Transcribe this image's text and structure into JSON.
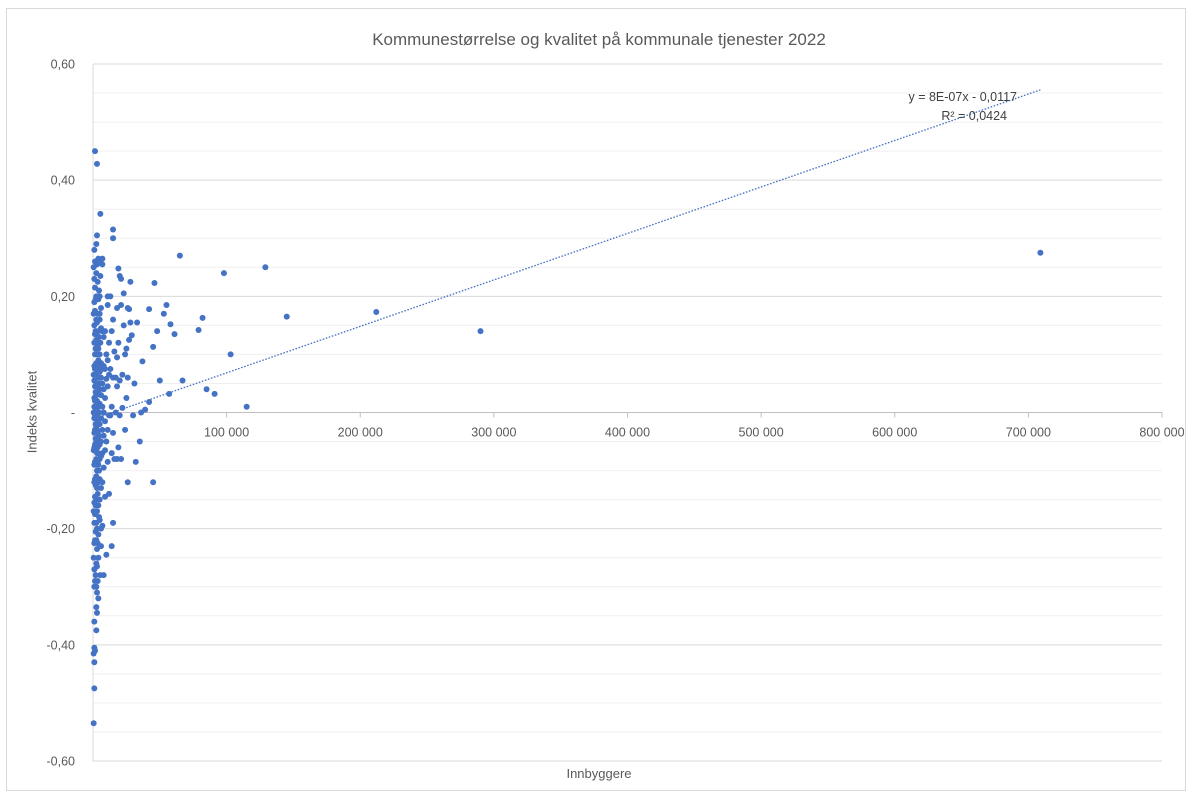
{
  "chart_data": {
    "type": "scatter",
    "title": "Kommunestørrelse og kvalitet på kommunale tjenester 2022",
    "xlabel": "Innbyggere",
    "ylabel": "Indeks kvalitet",
    "xlim": [
      0,
      800000
    ],
    "ylim": [
      -0.6,
      0.6
    ],
    "x_ticks": [
      0,
      100000,
      200000,
      300000,
      400000,
      500000,
      600000,
      700000,
      800000
    ],
    "x_tick_labels": [
      "",
      "100 000",
      "200 000",
      "300 000",
      "400 000",
      "500 000",
      "600 000",
      "700 000",
      "800 000"
    ],
    "y_ticks": [
      0.6,
      0.4,
      0.2,
      0,
      -0.2,
      -0.4,
      -0.6
    ],
    "y_tick_labels": [
      "0,60",
      "0,40",
      "0,20",
      "-",
      "-0,20",
      "-0,40",
      "-0,60"
    ],
    "grid": true,
    "legend": "none",
    "colors": {
      "points": "#4472c4",
      "trendline": "#4472c4",
      "grid": "#d9d9d9",
      "text": "#595959"
    },
    "trendline": {
      "type": "linear",
      "style": "dotted",
      "slope": 8e-07,
      "intercept": -0.0117,
      "x_range": [
        0,
        709000
      ],
      "equation_label": "y = 8E-07x - 0,0117",
      "r2_label": "R² = 0,0424"
    },
    "series": [
      {
        "points": [
          [
            709000,
            0.275
          ],
          [
            290000,
            0.14
          ],
          [
            212000,
            0.173
          ],
          [
            145000,
            0.165
          ],
          [
            129000,
            0.25
          ],
          [
            115000,
            0.01
          ],
          [
            103000,
            0.1
          ],
          [
            98000,
            0.24
          ],
          [
            91000,
            0.032
          ],
          [
            85000,
            0.04
          ],
          [
            82000,
            0.163
          ],
          [
            79000,
            0.142
          ],
          [
            67000,
            0.055
          ],
          [
            65000,
            0.27
          ],
          [
            61000,
            0.135
          ],
          [
            58000,
            0.152
          ],
          [
            57000,
            0.032
          ],
          [
            55000,
            0.185
          ],
          [
            53000,
            0.17
          ],
          [
            50000,
            0.055
          ],
          [
            48000,
            0.14
          ],
          [
            46000,
            0.223
          ],
          [
            45000,
            -0.12
          ],
          [
            45000,
            0.113
          ],
          [
            42000,
            0.178
          ],
          [
            42000,
            0.018
          ],
          [
            39000,
            0.005
          ],
          [
            37000,
            0.088
          ],
          [
            36000,
            0.0
          ],
          [
            35000,
            -0.05
          ],
          [
            33000,
            0.155
          ],
          [
            32000,
            -0.085
          ],
          [
            31000,
            0.05
          ],
          [
            30000,
            -0.005
          ],
          [
            29000,
            0.133
          ],
          [
            28000,
            0.155
          ],
          [
            28000,
            0.225
          ],
          [
            27000,
            0.178
          ],
          [
            27000,
            0.125
          ],
          [
            26000,
            0.18
          ],
          [
            26000,
            0.06
          ],
          [
            26000,
            -0.12
          ],
          [
            25000,
            0.11
          ],
          [
            25000,
            0.025
          ],
          [
            24000,
            0.1
          ],
          [
            24000,
            -0.03
          ],
          [
            23000,
            0.205
          ],
          [
            23000,
            0.15
          ],
          [
            22000,
            0.065
          ],
          [
            22000,
            0.008
          ],
          [
            21000,
            0.23
          ],
          [
            21000,
            0.185
          ],
          [
            21000,
            -0.08
          ],
          [
            20000,
            0.235
          ],
          [
            20000,
            0.055
          ],
          [
            20000,
            -0.005
          ],
          [
            19000,
            0.248
          ],
          [
            19000,
            0.12
          ],
          [
            19000,
            -0.06
          ],
          [
            18000,
            0.18
          ],
          [
            18000,
            0.095
          ],
          [
            18000,
            0.045
          ],
          [
            18000,
            -0.08
          ],
          [
            17000,
            0.06
          ],
          [
            17000,
            0.0
          ],
          [
            16000,
            0.105
          ],
          [
            16000,
            -0.08
          ],
          [
            15000,
            0.315
          ],
          [
            15000,
            0.3
          ],
          [
            15000,
            0.16
          ],
          [
            15000,
            0.06
          ],
          [
            15000,
            -0.035
          ],
          [
            15000,
            -0.19
          ],
          [
            14000,
            0.14
          ],
          [
            14000,
            0.01
          ],
          [
            14000,
            -0.07
          ],
          [
            14000,
            -0.23
          ],
          [
            13000,
            0.2
          ],
          [
            13000,
            0.075
          ],
          [
            13000,
            -0.005
          ],
          [
            12000,
            0.12
          ],
          [
            12000,
            0.065
          ],
          [
            12000,
            -0.005
          ],
          [
            12000,
            -0.14
          ],
          [
            11000,
            0.2
          ],
          [
            11000,
            0.185
          ],
          [
            11000,
            0.09
          ],
          [
            11000,
            0.045
          ],
          [
            11000,
            -0.03
          ],
          [
            11000,
            -0.085
          ],
          [
            10000,
            0.1
          ],
          [
            10000,
            0.058
          ],
          [
            10000,
            -0.05
          ],
          [
            10000,
            -0.245
          ],
          [
            9000,
            0.14
          ],
          [
            9000,
            0.075
          ],
          [
            9000,
            0.025
          ],
          [
            9000,
            -0.015
          ],
          [
            9000,
            -0.065
          ],
          [
            9000,
            -0.145
          ],
          [
            8000,
            0.13
          ],
          [
            8000,
            0.08
          ],
          [
            8000,
            0.04
          ],
          [
            8000,
            0.0
          ],
          [
            8000,
            -0.04
          ],
          [
            8000,
            -0.095
          ],
          [
            8000,
            -0.28
          ],
          [
            7000,
            0.265
          ],
          [
            7000,
            0.255
          ],
          [
            7000,
            0.14
          ],
          [
            7000,
            0.075
          ],
          [
            7000,
            0.05
          ],
          [
            7000,
            0.01
          ],
          [
            7000,
            -0.03
          ],
          [
            7000,
            -0.07
          ],
          [
            7000,
            -0.12
          ],
          [
            7000,
            -0.195
          ],
          [
            6000,
            0.18
          ],
          [
            6000,
            0.145
          ],
          [
            6000,
            0.085
          ],
          [
            6000,
            0.06
          ],
          [
            6000,
            0.03
          ],
          [
            6000,
            -0.01
          ],
          [
            6000,
            -0.05
          ],
          [
            6000,
            -0.075
          ],
          [
            6000,
            -0.13
          ],
          [
            6000,
            -0.2
          ],
          [
            6000,
            -0.23
          ],
          [
            5500,
            0.342
          ],
          [
            5500,
            0.26
          ],
          [
            5500,
            0.235
          ],
          [
            5500,
            0.12
          ],
          [
            5500,
            -0.28
          ],
          [
            5000,
            0.2
          ],
          [
            5000,
            0.17
          ],
          [
            5000,
            0.16
          ],
          [
            5000,
            0.1
          ],
          [
            5000,
            0.07
          ],
          [
            5000,
            0.04
          ],
          [
            5000,
            0.015
          ],
          [
            5000,
            -0.02
          ],
          [
            5000,
            -0.055
          ],
          [
            5000,
            -0.08
          ],
          [
            5000,
            -0.115
          ],
          [
            5000,
            -0.15
          ],
          [
            5000,
            -0.185
          ],
          [
            4500,
            0.21
          ],
          [
            4500,
            0.13
          ],
          [
            4500,
            0.08
          ],
          [
            4500,
            0.05
          ],
          [
            4500,
            0.0
          ],
          [
            4500,
            -0.04
          ],
          [
            4500,
            -0.1
          ],
          [
            4500,
            -0.18
          ],
          [
            4000,
            0.265
          ],
          [
            4000,
            0.195
          ],
          [
            4000,
            0.14
          ],
          [
            4000,
            0.11
          ],
          [
            4000,
            0.09
          ],
          [
            4000,
            0.06
          ],
          [
            4000,
            0.035
          ],
          [
            4000,
            0.01
          ],
          [
            4000,
            -0.02
          ],
          [
            4000,
            -0.045
          ],
          [
            4000,
            -0.07
          ],
          [
            4000,
            -0.09
          ],
          [
            4000,
            -0.12
          ],
          [
            4000,
            -0.16
          ],
          [
            4000,
            -0.21
          ],
          [
            4000,
            -0.25
          ],
          [
            4000,
            -0.32
          ],
          [
            3500,
            0.225
          ],
          [
            3500,
            0.17
          ],
          [
            3500,
            0.115
          ],
          [
            3500,
            0.075
          ],
          [
            3500,
            0.045
          ],
          [
            3500,
            0.015
          ],
          [
            3500,
            -0.015
          ],
          [
            3500,
            -0.035
          ],
          [
            3500,
            -0.06
          ],
          [
            3500,
            -0.085
          ],
          [
            3500,
            -0.14
          ],
          [
            3500,
            -0.225
          ],
          [
            3500,
            -0.29
          ],
          [
            3000,
            0.428
          ],
          [
            3000,
            0.305
          ],
          [
            3000,
            0.255
          ],
          [
            3000,
            0.2
          ],
          [
            3000,
            0.155
          ],
          [
            3000,
            0.1
          ],
          [
            3000,
            0.07
          ],
          [
            3000,
            0.02
          ],
          [
            3000,
            -0.005
          ],
          [
            3000,
            -0.03
          ],
          [
            3000,
            -0.07
          ],
          [
            3000,
            -0.1
          ],
          [
            3000,
            -0.13
          ],
          [
            3000,
            -0.17
          ],
          [
            3000,
            -0.2
          ],
          [
            3000,
            -0.235
          ],
          [
            3000,
            -0.265
          ],
          [
            3000,
            -0.31
          ],
          [
            3000,
            -0.345
          ],
          [
            2500,
            0.29
          ],
          [
            2500,
            0.24
          ],
          [
            2500,
            0.2
          ],
          [
            2500,
            0.16
          ],
          [
            2500,
            0.125
          ],
          [
            2500,
            0.085
          ],
          [
            2500,
            0.05
          ],
          [
            2500,
            0.03
          ],
          [
            2500,
            0.0
          ],
          [
            2500,
            -0.025
          ],
          [
            2500,
            -0.05
          ],
          [
            2500,
            -0.08
          ],
          [
            2500,
            -0.11
          ],
          [
            2500,
            -0.15
          ],
          [
            2500,
            -0.19
          ],
          [
            2500,
            -0.22
          ],
          [
            2500,
            -0.26
          ],
          [
            2500,
            -0.3
          ],
          [
            2500,
            -0.335
          ],
          [
            2500,
            -0.375
          ],
          [
            2000,
            0.195
          ],
          [
            2000,
            0.14
          ],
          [
            2000,
            0.11
          ],
          [
            2000,
            0.065
          ],
          [
            2000,
            0.035
          ],
          [
            2000,
            0.005
          ],
          [
            2000,
            -0.02
          ],
          [
            2000,
            -0.045
          ],
          [
            2000,
            -0.065
          ],
          [
            2000,
            -0.09
          ],
          [
            2000,
            -0.125
          ],
          [
            2000,
            -0.16
          ],
          [
            2000,
            -0.205
          ],
          [
            2000,
            -0.28
          ],
          [
            1500,
            0.45
          ],
          [
            1500,
            0.26
          ],
          [
            1500,
            0.215
          ],
          [
            1500,
            0.175
          ],
          [
            1500,
            0.135
          ],
          [
            1500,
            0.1
          ],
          [
            1500,
            0.075
          ],
          [
            1500,
            0.045
          ],
          [
            1500,
            0.02
          ],
          [
            1500,
            -0.005
          ],
          [
            1500,
            -0.03
          ],
          [
            1500,
            -0.055
          ],
          [
            1500,
            -0.085
          ],
          [
            1500,
            -0.115
          ],
          [
            1500,
            -0.145
          ],
          [
            1500,
            -0.175
          ],
          [
            1500,
            -0.22
          ],
          [
            1500,
            -0.29
          ],
          [
            1500,
            -0.41
          ],
          [
            1000,
            0.28
          ],
          [
            1000,
            0.23
          ],
          [
            1000,
            0.19
          ],
          [
            1000,
            0.15
          ],
          [
            1000,
            0.12
          ],
          [
            1000,
            0.08
          ],
          [
            1000,
            0.055
          ],
          [
            1000,
            0.025
          ],
          [
            1000,
            0.01
          ],
          [
            1000,
            -0.01
          ],
          [
            1000,
            -0.035
          ],
          [
            1000,
            -0.06
          ],
          [
            1000,
            -0.09
          ],
          [
            1000,
            -0.12
          ],
          [
            1000,
            -0.155
          ],
          [
            1000,
            -0.19
          ],
          [
            1000,
            -0.225
          ],
          [
            1000,
            -0.27
          ],
          [
            1000,
            -0.3
          ],
          [
            1000,
            -0.36
          ],
          [
            1000,
            -0.405
          ],
          [
            1000,
            -0.43
          ],
          [
            1000,
            -0.475
          ],
          [
            500,
            0.25
          ],
          [
            500,
            0.17
          ],
          [
            500,
            0.065
          ],
          [
            500,
            0.0
          ],
          [
            500,
            -0.065
          ],
          [
            500,
            -0.17
          ],
          [
            500,
            -0.25
          ],
          [
            500,
            -0.415
          ],
          [
            500,
            -0.535
          ]
        ]
      }
    ]
  }
}
